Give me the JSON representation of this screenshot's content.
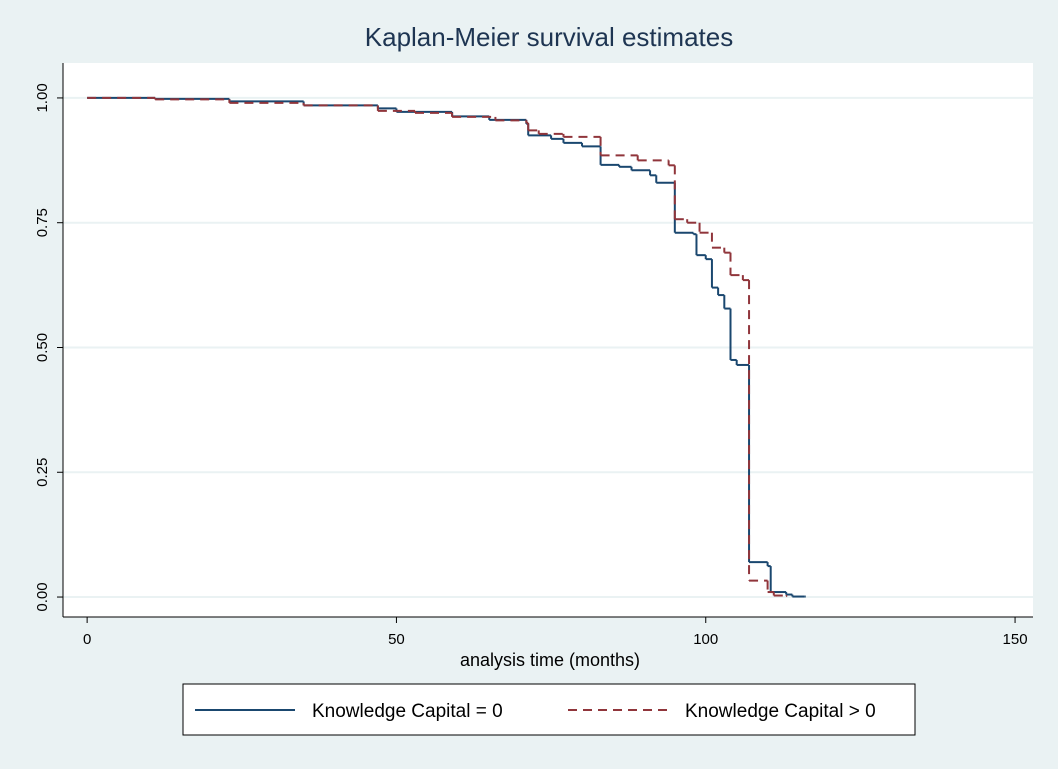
{
  "chart_data": {
    "type": "step",
    "title": "Kaplan-Meier survival estimates",
    "x_label": "analysis time (months)",
    "xlim": [
      -3.9,
      152.9
    ],
    "ylim": [
      -0.04,
      1.07
    ],
    "xticks": [
      0,
      50,
      100,
      150
    ],
    "yticks": [
      {
        "value": 0,
        "label": "0.00"
      },
      {
        "value": 0.25,
        "label": "0.25"
      },
      {
        "value": 0.5,
        "label": "0.50"
      },
      {
        "value": 0.75,
        "label": "0.75"
      },
      {
        "value": 1,
        "label": "1.00"
      }
    ],
    "grid": true,
    "legend": "bottom",
    "series": [
      {
        "name": "Knowledge Capital = 0",
        "color": "#1a476f",
        "dash": false,
        "x": [
          0,
          11,
          23,
          35,
          47,
          50,
          59,
          65,
          71,
          71.3,
          75,
          77,
          80,
          83,
          86,
          88,
          91,
          92,
          95,
          98,
          98.5,
          100,
          101,
          102,
          103,
          104,
          105,
          107,
          110,
          110.5,
          113,
          114,
          116
        ],
        "values": [
          1.0,
          0.998,
          0.993,
          0.985,
          0.979,
          0.972,
          0.963,
          0.956,
          0.948,
          0.925,
          0.918,
          0.91,
          0.903,
          0.866,
          0.862,
          0.855,
          0.845,
          0.83,
          0.73,
          0.727,
          0.685,
          0.677,
          0.62,
          0.605,
          0.578,
          0.475,
          0.465,
          0.07,
          0.062,
          0.01,
          0.005,
          0.001,
          0.001
        ]
      },
      {
        "name": "Knowledge Capital > 0",
        "color": "#90353b",
        "dash": true,
        "x": [
          0,
          11,
          23,
          35,
          47,
          53,
          59,
          66,
          71,
          71.3,
          73,
          77,
          83,
          89,
          94,
          95,
          97,
          99,
          101,
          103,
          104,
          106,
          107,
          110,
          111,
          113
        ],
        "values": [
          1.0,
          0.997,
          0.99,
          0.985,
          0.974,
          0.97,
          0.962,
          0.955,
          0.95,
          0.935,
          0.928,
          0.922,
          0.885,
          0.875,
          0.865,
          0.757,
          0.75,
          0.73,
          0.7,
          0.69,
          0.645,
          0.635,
          0.033,
          0.01,
          0.003,
          0.002
        ]
      }
    ]
  }
}
